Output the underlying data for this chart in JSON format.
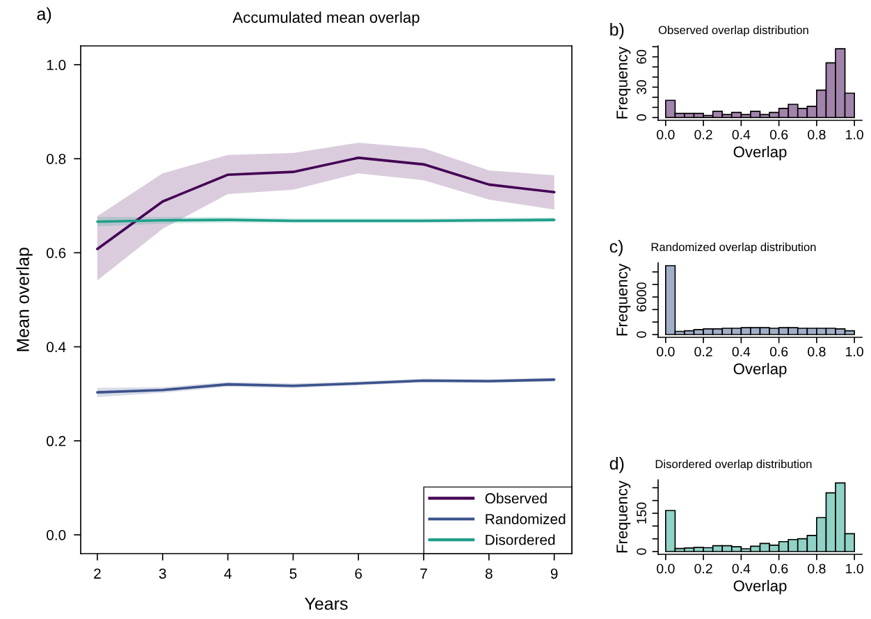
{
  "chart_data": [
    {
      "type": "line",
      "title": "Accumulated mean overlap",
      "xlabel": "Years",
      "ylabel": "Mean overlap",
      "annotations": [
        "a)"
      ],
      "x": [
        2,
        3,
        4,
        5,
        6,
        7,
        8,
        9
      ],
      "series": [
        {
          "name": "Observed",
          "color": "#440154",
          "values": [
            0.608,
            0.709,
            0.766,
            0.772,
            0.802,
            0.788,
            0.745,
            0.729
          ],
          "lower": [
            0.541,
            0.651,
            0.725,
            0.734,
            0.769,
            0.754,
            0.713,
            0.692
          ],
          "upper": [
            0.678,
            0.769,
            0.808,
            0.812,
            0.834,
            0.822,
            0.775,
            0.765
          ]
        },
        {
          "name": "Randomized",
          "color": "#3b528b",
          "values": [
            0.303,
            0.308,
            0.32,
            0.317,
            0.322,
            0.328,
            0.327,
            0.33
          ],
          "lower": [
            0.293,
            0.302,
            0.315,
            0.312,
            0.318,
            0.324,
            0.323,
            0.326
          ],
          "upper": [
            0.313,
            0.314,
            0.325,
            0.322,
            0.326,
            0.332,
            0.331,
            0.334
          ]
        },
        {
          "name": "Disordered",
          "color": "#1f9e89",
          "values": [
            0.666,
            0.669,
            0.67,
            0.668,
            0.668,
            0.668,
            0.669,
            0.67
          ],
          "lower": [
            0.656,
            0.662,
            0.664,
            0.663,
            0.663,
            0.663,
            0.664,
            0.665
          ],
          "upper": [
            0.676,
            0.676,
            0.676,
            0.673,
            0.673,
            0.673,
            0.674,
            0.675
          ]
        }
      ],
      "xlim": [
        1.745,
        9.27
      ],
      "ylim": [
        -0.04,
        1.04
      ],
      "xticks": [
        2,
        3,
        4,
        5,
        6,
        7,
        8,
        9
      ],
      "yticks": [
        {
          "value": 0,
          "label": "0.0"
        },
        {
          "value": 0.2,
          "label": "0.2"
        },
        {
          "value": 0.4,
          "label": "0.4"
        },
        {
          "value": 0.6,
          "label": "0.6"
        },
        {
          "value": 0.8,
          "label": "0.8"
        },
        {
          "value": 1,
          "label": "1.0"
        }
      ],
      "legend": "bottom right",
      "grid": false
    },
    {
      "type": "histogram",
      "title": "Observed overlap distribution",
      "xlabel": "Overlap",
      "ylabel": "Frequency",
      "annotations": [
        "b)"
      ],
      "color": "#a283ab",
      "bins": [
        0,
        0.05,
        0.1,
        0.15,
        0.2,
        0.25,
        0.3,
        0.35,
        0.4,
        0.45,
        0.5,
        0.55,
        0.6,
        0.65,
        0.7,
        0.75,
        0.8,
        0.85,
        0.9,
        0.95,
        1
      ],
      "values": [
        17,
        4,
        4,
        4,
        2,
        6,
        3,
        5,
        3,
        6,
        3,
        5,
        9,
        13,
        9,
        11,
        27,
        54,
        68,
        24
      ],
      "xlim": [
        -0.04,
        1.04
      ],
      "ylim": [
        -2.8,
        70.8
      ],
      "xticks": [
        {
          "value": 0,
          "label": "0.0"
        },
        {
          "value": 0.2,
          "label": "0.2"
        },
        {
          "value": 0.4,
          "label": "0.4"
        },
        {
          "value": 0.6,
          "label": "0.6"
        },
        {
          "value": 0.8,
          "label": "0.8"
        },
        {
          "value": 1,
          "label": "1.0"
        }
      ],
      "yticks": [
        0,
        {
          "value": 10,
          "label": null
        },
        {
          "value": 20,
          "label": null
        },
        30,
        {
          "value": 40,
          "label": null
        },
        {
          "value": 50,
          "label": null
        },
        60,
        {
          "value": 70,
          "label": null
        }
      ],
      "grid": false
    },
    {
      "type": "histogram",
      "title": "Randomized overlap distribution",
      "xlabel": "Overlap",
      "ylabel": "Frequency",
      "annotations": [
        "c)"
      ],
      "color": "#a0aec8",
      "bins": [
        0,
        0.05,
        0.1,
        0.15,
        0.2,
        0.25,
        0.3,
        0.35,
        0.4,
        0.45,
        0.5,
        0.55,
        0.6,
        0.65,
        0.7,
        0.75,
        0.8,
        0.85,
        0.9,
        0.95,
        1
      ],
      "values": [
        11000,
        500,
        600,
        800,
        900,
        900,
        1000,
        1000,
        1100,
        1100,
        1100,
        1000,
        1100,
        1100,
        1000,
        1000,
        1000,
        1000,
        900,
        600
      ],
      "xlim": [
        -0.04,
        1.04
      ],
      "ylim": [
        -440,
        11440
      ],
      "xticks": [
        {
          "value": 0,
          "label": "0.0"
        },
        {
          "value": 0.2,
          "label": "0.2"
        },
        {
          "value": 0.4,
          "label": "0.4"
        },
        {
          "value": 0.6,
          "label": "0.6"
        },
        {
          "value": 0.8,
          "label": "0.8"
        },
        {
          "value": 1,
          "label": "1.0"
        }
      ],
      "yticks": [
        0,
        {
          "value": 2000,
          "label": null
        },
        {
          "value": 4000,
          "label": null
        },
        6000,
        {
          "value": 8000,
          "label": null
        },
        {
          "value": 10000,
          "label": null
        }
      ],
      "grid": false
    },
    {
      "type": "histogram",
      "title": "Disordered overlap distribution",
      "xlabel": "Overlap",
      "ylabel": "Frequency",
      "annotations": [
        "d)"
      ],
      "color": "#90d2c6",
      "bins": [
        0,
        0.05,
        0.1,
        0.15,
        0.2,
        0.25,
        0.3,
        0.35,
        0.4,
        0.45,
        0.5,
        0.55,
        0.6,
        0.65,
        0.7,
        0.75,
        0.8,
        0.85,
        0.9,
        0.95,
        1
      ],
      "values": [
        161,
        12,
        14,
        16,
        15,
        23,
        23,
        19,
        11,
        21,
        32,
        25,
        39,
        47,
        50,
        63,
        133,
        230,
        269,
        70
      ],
      "xlim": [
        -0.04,
        1.04
      ],
      "ylim": [
        -10.8,
        280.8
      ],
      "xticks": [
        {
          "value": 0,
          "label": "0.0"
        },
        {
          "value": 0.2,
          "label": "0.2"
        },
        {
          "value": 0.4,
          "label": "0.4"
        },
        {
          "value": 0.6,
          "label": "0.6"
        },
        {
          "value": 0.8,
          "label": "0.8"
        },
        {
          "value": 1,
          "label": "1.0"
        }
      ],
      "yticks": [
        0,
        {
          "value": 50,
          "label": null
        },
        {
          "value": 100,
          "label": null
        },
        150,
        {
          "value": 200,
          "label": null
        },
        {
          "value": 250,
          "label": null
        }
      ],
      "grid": false
    }
  ]
}
